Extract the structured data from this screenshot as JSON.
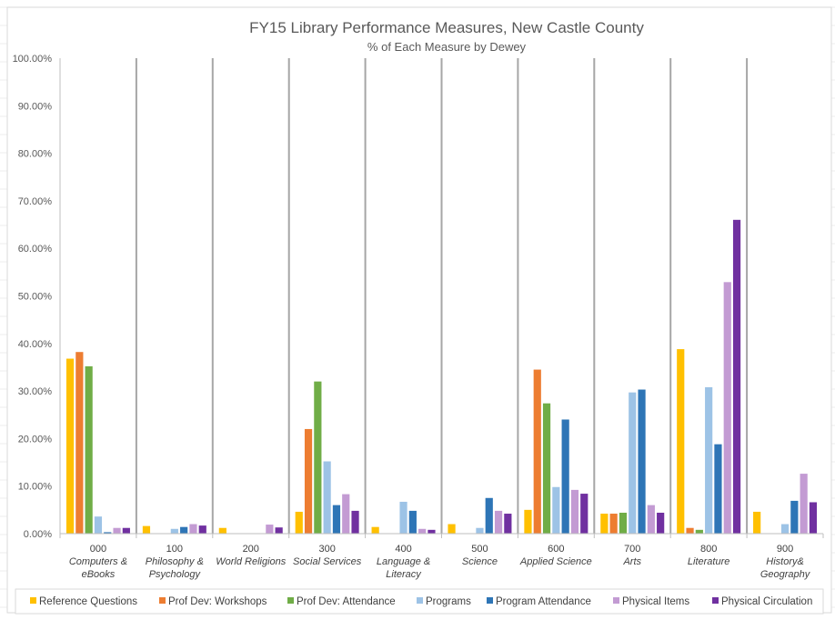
{
  "chart_data": {
    "type": "bar",
    "title": "FY15 Library Performance Measures, New Castle County",
    "subtitle": "% of Each Measure by Dewey",
    "xlabel": "",
    "ylabel": "",
    "ylim": [
      0,
      100
    ],
    "y_tick_values": [
      0,
      10,
      20,
      30,
      40,
      50,
      60,
      70,
      80,
      90,
      100
    ],
    "y_tick_labels": [
      "0.00%",
      "10.00%",
      "20.00%",
      "30.00%",
      "40.00%",
      "50.00%",
      "60.00%",
      "70.00%",
      "80.00%",
      "90.00%",
      "100.00%"
    ],
    "grid": false,
    "legend_position": "bottom",
    "categories": [
      [
        "000",
        "Computers &",
        "eBooks"
      ],
      [
        "100",
        "Philosophy &",
        "Psychology"
      ],
      [
        "200",
        "World Religions"
      ],
      [
        "300",
        "Social Services"
      ],
      [
        "400",
        "Language &",
        "Literacy"
      ],
      [
        "500",
        "Science"
      ],
      [
        "600",
        "Applied Science"
      ],
      [
        "700",
        "Arts"
      ],
      [
        "800",
        "Literature"
      ],
      [
        "900",
        "History&",
        "Geography"
      ]
    ],
    "series": [
      {
        "name": "Reference Questions",
        "color": "#FFC000",
        "values": [
          36.8,
          1.6,
          1.2,
          4.6,
          1.4,
          2.0,
          5.0,
          4.2,
          38.8,
          4.6
        ]
      },
      {
        "name": "Prof Dev: Workshops",
        "color": "#ED7D31",
        "values": [
          38.2,
          0,
          0,
          22.0,
          0,
          0,
          34.5,
          4.2,
          1.2,
          0
        ]
      },
      {
        "name": "Prof Dev: Attendance",
        "color": "#70AD47",
        "values": [
          35.2,
          0,
          0,
          32.0,
          0,
          0,
          27.4,
          4.4,
          0.8,
          0
        ]
      },
      {
        "name": "Programs",
        "color": "#9DC3E6",
        "values": [
          3.6,
          1.0,
          0,
          15.2,
          6.7,
          1.2,
          9.8,
          29.7,
          30.8,
          2.0
        ]
      },
      {
        "name": "Program Attendance",
        "color": "#2E75B6",
        "values": [
          0.3,
          1.4,
          0,
          6.0,
          4.8,
          7.5,
          24.0,
          30.3,
          18.8,
          6.9
        ]
      },
      {
        "name": "Physical Items",
        "color": "#C39BD3",
        "values": [
          1.2,
          2.0,
          1.9,
          8.3,
          1.0,
          4.8,
          9.2,
          6.0,
          52.9,
          12.6
        ]
      },
      {
        "name": "Physical Circulation",
        "color": "#7030A0",
        "values": [
          1.2,
          1.7,
          1.3,
          4.8,
          0.8,
          4.2,
          8.4,
          4.4,
          66.0,
          6.6
        ]
      }
    ]
  }
}
